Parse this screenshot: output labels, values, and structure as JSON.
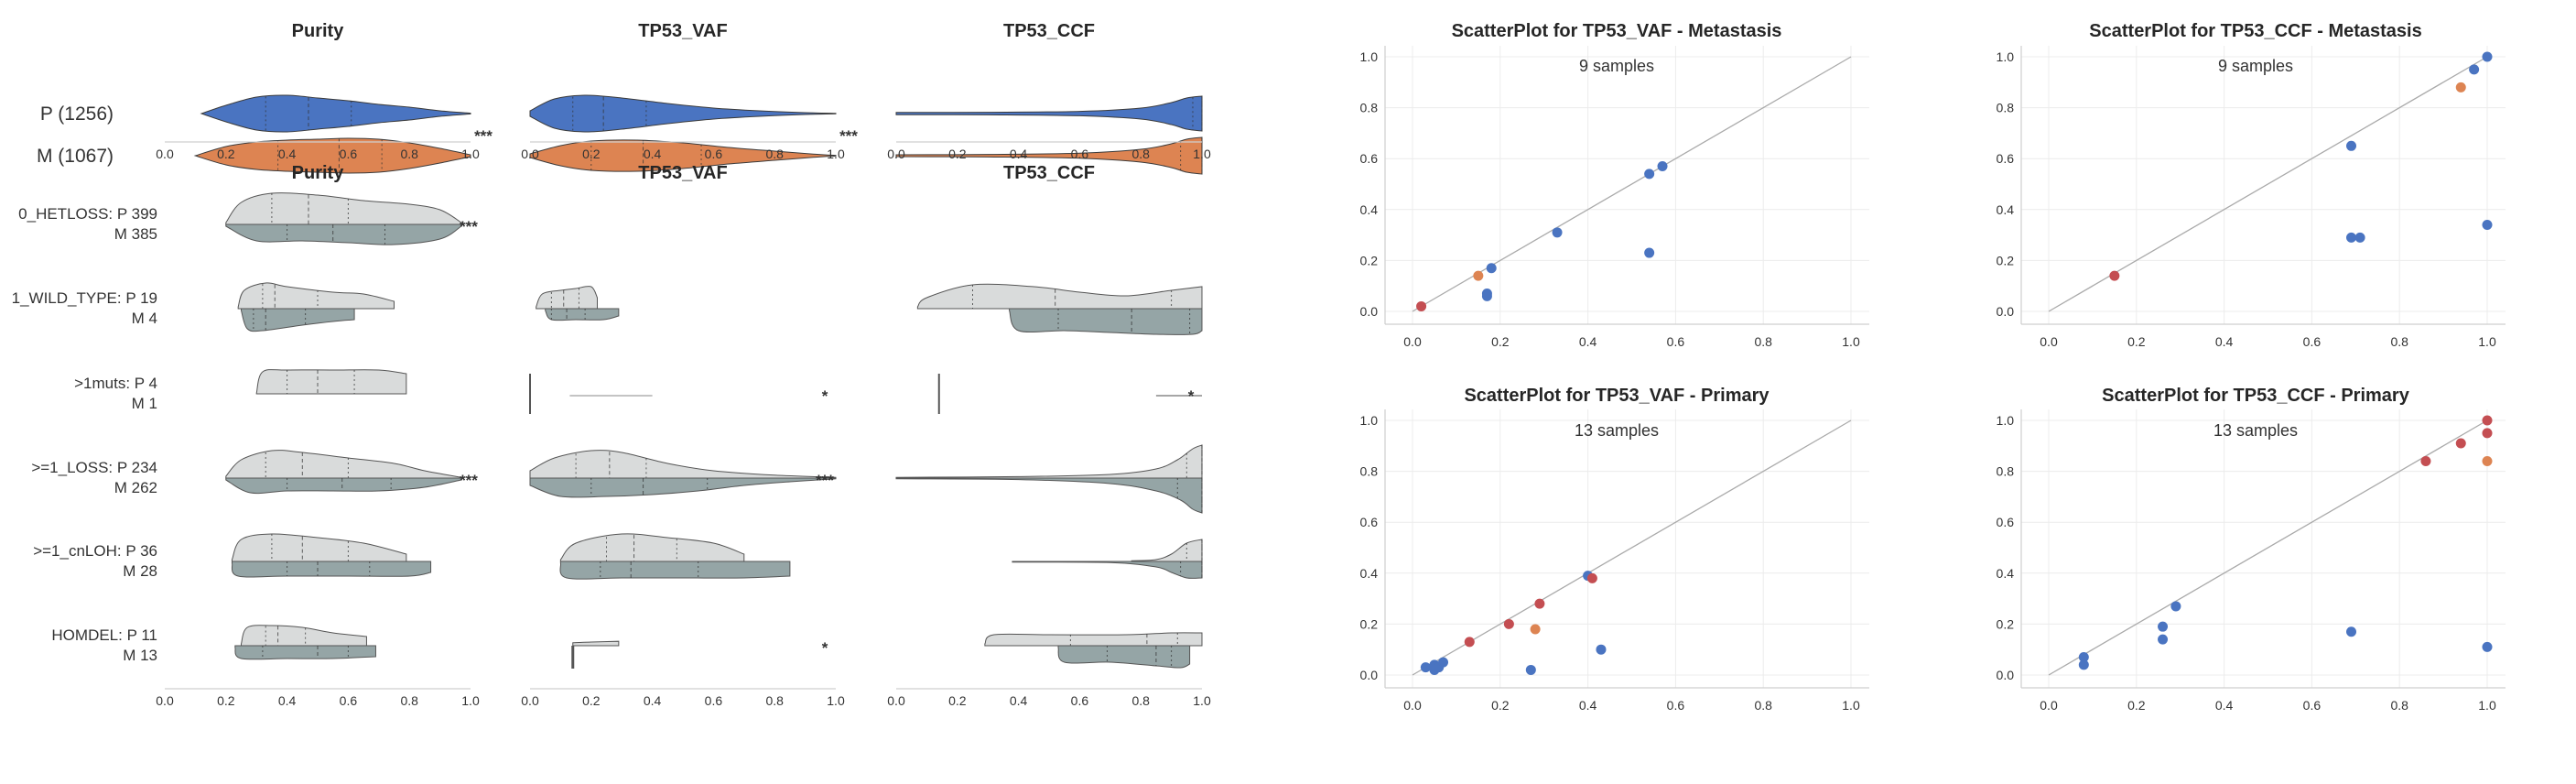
{
  "chart_data": [
    {
      "type": "violin",
      "panel": "top-violins",
      "columns": [
        "Purity",
        "TP53_VAF",
        "TP53_CCF"
      ],
      "categories": [
        "P (1256)",
        "M (1067)"
      ],
      "series_colors": {
        "P (1256)": "#4a74c1",
        "M (1067)": "#dd8452"
      },
      "xlim": [
        0.0,
        1.0
      ],
      "xticks": [
        "0.0",
        "0.2",
        "0.4",
        "0.6",
        "0.8",
        "1.0"
      ],
      "quartiles": {
        "Purity": {
          "P (1256)": [
            0.33,
            0.47,
            0.61
          ],
          "M (1067)": [
            0.37,
            0.57,
            0.71
          ]
        },
        "TP53_VAF": {
          "P (1256)": [
            0.14,
            0.24,
            0.38
          ],
          "M (1067)": [
            0.2,
            0.37,
            0.56
          ]
        },
        "TP53_CCF": {
          "P (1256)": [
            0.97,
            1.0,
            1.0
          ],
          "M (1067)": [
            0.93,
            1.0,
            1.0
          ]
        }
      },
      "significance": {
        "Purity": "***",
        "TP53_VAF": "***",
        "TP53_CCF": ""
      }
    },
    {
      "type": "split-violin",
      "panel": "bottom-violins",
      "columns": [
        "Purity",
        "TP53_VAF",
        "TP53_CCF"
      ],
      "rows": [
        {
          "label_line1": "0_HETLOSS: P 399",
          "label_line2": "M 385",
          "sig": [
            "***",
            "",
            ""
          ]
        },
        {
          "label_line1": "1_WILD_TYPE: P 19",
          "label_line2": "M 4",
          "sig": [
            "",
            "",
            ""
          ]
        },
        {
          "label_line1": ">1muts: P 4",
          "label_line2": "M 1",
          "sig": [
            "",
            "*",
            "*"
          ]
        },
        {
          "label_line1": ">=1_LOSS: P 234",
          "label_line2": "M 262",
          "sig": [
            "***",
            "***",
            ""
          ]
        },
        {
          "label_line1": ">=1_cnLOH: P 36",
          "label_line2": "M 28",
          "sig": [
            "",
            "",
            ""
          ]
        },
        {
          "label_line1": "HOMDEL: P 11",
          "label_line2": "M 13",
          "sig": [
            "",
            "*",
            ""
          ]
        }
      ],
      "split_colors": {
        "P": "#d9dbdb",
        "M": "#95a5a6"
      },
      "xlim": [
        0.0,
        1.0
      ],
      "xticks": [
        "0.0",
        "0.2",
        "0.4",
        "0.6",
        "0.8",
        "1.0"
      ]
    },
    {
      "type": "scatter",
      "title": "ScatterPlot for TP53_VAF - Metastasis",
      "annotation": "9 samples",
      "xlim": [
        0,
        1
      ],
      "ylim": [
        0,
        1
      ],
      "xticks": [
        "0.0",
        "0.2",
        "0.4",
        "0.6",
        "0.8",
        "1.0"
      ],
      "yticks": [
        "0.0",
        "0.2",
        "0.4",
        "0.6",
        "0.8",
        "1.0"
      ],
      "diagonal": true,
      "points": [
        {
          "x": 0.02,
          "y": 0.02,
          "color": "#c44e52"
        },
        {
          "x": 0.15,
          "y": 0.14,
          "color": "#dd8452"
        },
        {
          "x": 0.18,
          "y": 0.17,
          "color": "#4a74c1"
        },
        {
          "x": 0.17,
          "y": 0.07,
          "color": "#4a74c1"
        },
        {
          "x": 0.17,
          "y": 0.06,
          "color": "#4a74c1"
        },
        {
          "x": 0.33,
          "y": 0.31,
          "color": "#4a74c1"
        },
        {
          "x": 0.54,
          "y": 0.54,
          "color": "#4a74c1"
        },
        {
          "x": 0.57,
          "y": 0.57,
          "color": "#4a74c1"
        },
        {
          "x": 0.54,
          "y": 0.23,
          "color": "#4a74c1"
        }
      ]
    },
    {
      "type": "scatter",
      "title": "ScatterPlot for TP53_CCF - Metastasis",
      "annotation": "9 samples",
      "xlim": [
        0,
        1
      ],
      "ylim": [
        0,
        1
      ],
      "xticks": [
        "0.0",
        "0.2",
        "0.4",
        "0.6",
        "0.8",
        "1.0"
      ],
      "yticks": [
        "0.0",
        "0.2",
        "0.4",
        "0.6",
        "0.8",
        "1.0"
      ],
      "diagonal": true,
      "points": [
        {
          "x": 0.15,
          "y": 0.14,
          "color": "#c44e52"
        },
        {
          "x": 0.69,
          "y": 0.65,
          "color": "#4a74c1"
        },
        {
          "x": 0.69,
          "y": 0.29,
          "color": "#4a74c1"
        },
        {
          "x": 0.71,
          "y": 0.29,
          "color": "#4a74c1"
        },
        {
          "x": 0.94,
          "y": 0.88,
          "color": "#dd8452"
        },
        {
          "x": 0.97,
          "y": 0.95,
          "color": "#4a74c1"
        },
        {
          "x": 1.0,
          "y": 1.0,
          "color": "#4a74c1"
        },
        {
          "x": 1.0,
          "y": 0.34,
          "color": "#4a74c1"
        }
      ]
    },
    {
      "type": "scatter",
      "title": "ScatterPlot for TP53_VAF - Primary",
      "annotation": "13 samples",
      "xlim": [
        0,
        1
      ],
      "ylim": [
        0,
        1
      ],
      "xticks": [
        "0.0",
        "0.2",
        "0.4",
        "0.6",
        "0.8",
        "1.0"
      ],
      "yticks": [
        "0.0",
        "0.2",
        "0.4",
        "0.6",
        "0.8",
        "1.0"
      ],
      "diagonal": true,
      "points": [
        {
          "x": 0.03,
          "y": 0.03,
          "color": "#4a74c1"
        },
        {
          "x": 0.05,
          "y": 0.04,
          "color": "#4a74c1"
        },
        {
          "x": 0.05,
          "y": 0.02,
          "color": "#4a74c1"
        },
        {
          "x": 0.06,
          "y": 0.03,
          "color": "#4a74c1"
        },
        {
          "x": 0.07,
          "y": 0.05,
          "color": "#4a74c1"
        },
        {
          "x": 0.13,
          "y": 0.13,
          "color": "#c44e52"
        },
        {
          "x": 0.22,
          "y": 0.2,
          "color": "#c44e52"
        },
        {
          "x": 0.27,
          "y": 0.02,
          "color": "#4a74c1"
        },
        {
          "x": 0.28,
          "y": 0.18,
          "color": "#dd8452"
        },
        {
          "x": 0.29,
          "y": 0.28,
          "color": "#c44e52"
        },
        {
          "x": 0.4,
          "y": 0.39,
          "color": "#4a74c1"
        },
        {
          "x": 0.41,
          "y": 0.38,
          "color": "#c44e52"
        },
        {
          "x": 0.43,
          "y": 0.1,
          "color": "#4a74c1"
        }
      ]
    },
    {
      "type": "scatter",
      "title": "ScatterPlot for TP53_CCF - Primary",
      "annotation": "13 samples",
      "xlim": [
        0,
        1
      ],
      "ylim": [
        0,
        1
      ],
      "xticks": [
        "0.0",
        "0.2",
        "0.4",
        "0.6",
        "0.8",
        "1.0"
      ],
      "yticks": [
        "0.0",
        "0.2",
        "0.4",
        "0.6",
        "0.8",
        "1.0"
      ],
      "diagonal": true,
      "points": [
        {
          "x": 0.08,
          "y": 0.07,
          "color": "#4a74c1"
        },
        {
          "x": 0.08,
          "y": 0.04,
          "color": "#4a74c1"
        },
        {
          "x": 0.26,
          "y": 0.19,
          "color": "#4a74c1"
        },
        {
          "x": 0.26,
          "y": 0.14,
          "color": "#4a74c1"
        },
        {
          "x": 0.29,
          "y": 0.27,
          "color": "#4a74c1"
        },
        {
          "x": 0.69,
          "y": 0.17,
          "color": "#4a74c1"
        },
        {
          "x": 0.86,
          "y": 0.84,
          "color": "#c44e52"
        },
        {
          "x": 0.94,
          "y": 0.91,
          "color": "#c44e52"
        },
        {
          "x": 1.0,
          "y": 1.0,
          "color": "#c44e52"
        },
        {
          "x": 1.0,
          "y": 0.95,
          "color": "#c44e52"
        },
        {
          "x": 1.0,
          "y": 0.84,
          "color": "#dd8452"
        },
        {
          "x": 1.0,
          "y": 0.11,
          "color": "#4a74c1"
        }
      ]
    }
  ]
}
